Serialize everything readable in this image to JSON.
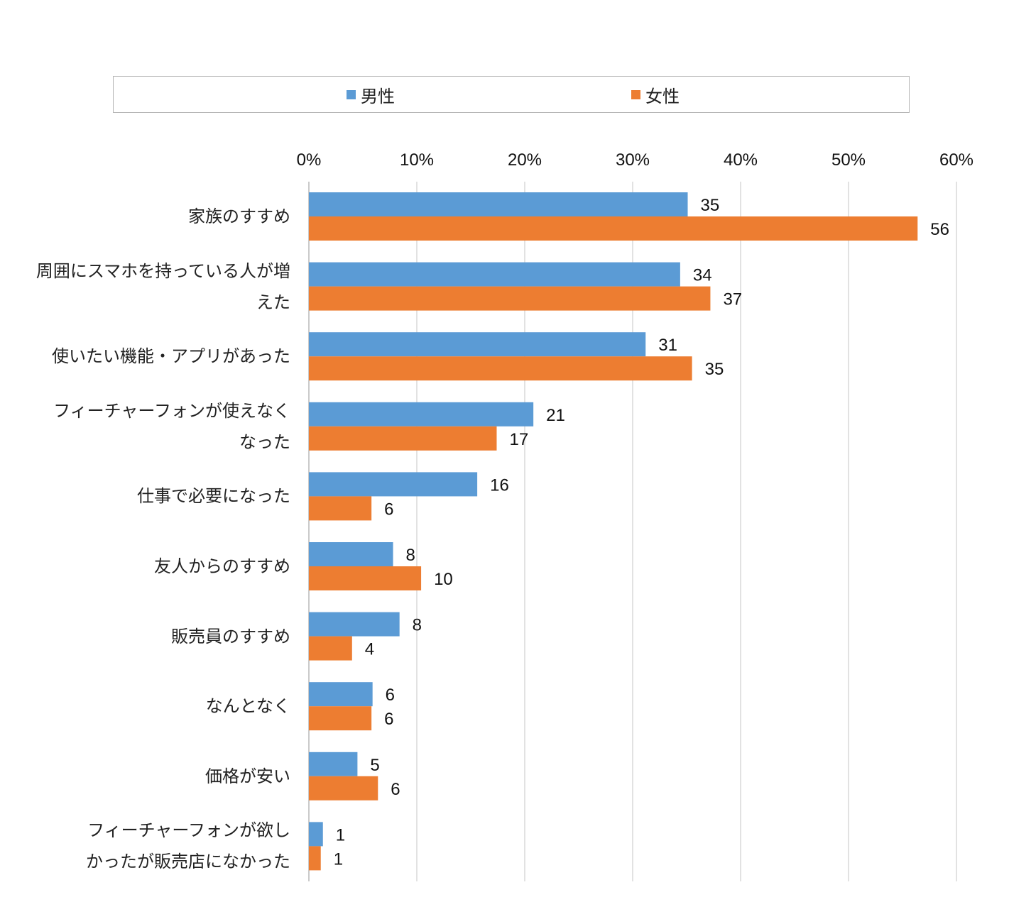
{
  "chart_data": {
    "type": "bar",
    "orientation": "horizontal",
    "categories": [
      "家族のすすめ",
      "周囲にスマホを持っている人が増えた",
      "使いたい機能・アプリがあった",
      "フィーチャーフォンが使えなくなった",
      "仕事で必要になった",
      "友人からのすすめ",
      "販売員のすすめ",
      "なんとなく",
      "価格が安い",
      "フィーチャーフォンが欲しかったが販売店になかった"
    ],
    "category_lines": [
      [
        "家族のすすめ"
      ],
      [
        "周囲にスマホを持っている人が増",
        "えた"
      ],
      [
        "使いたい機能・アプリがあった"
      ],
      [
        "フィーチャーフォンが使えなく",
        "なった"
      ],
      [
        "仕事で必要になった"
      ],
      [
        "友人からのすすめ"
      ],
      [
        "販売員のすすめ"
      ],
      [
        "なんとなく"
      ],
      [
        "価格が安い"
      ],
      [
        "フィーチャーフォンが欲し",
        "かったが販売店になかった"
      ]
    ],
    "series": [
      {
        "name": "男性",
        "color": "#5b9bd5",
        "values": [
          35,
          34,
          31,
          21,
          16,
          8,
          8,
          6,
          5,
          1
        ],
        "bar_lengths": [
          35.1,
          34.4,
          31.2,
          20.8,
          15.6,
          7.8,
          8.4,
          5.9,
          4.5,
          1.3
        ]
      },
      {
        "name": "女性",
        "color": "#ed7d31",
        "values": [
          56,
          37,
          35,
          17,
          6,
          10,
          4,
          6,
          6,
          1
        ],
        "bar_lengths": [
          56.4,
          37.2,
          35.5,
          17.4,
          5.8,
          10.4,
          4.0,
          5.8,
          6.4,
          1.1
        ]
      }
    ],
    "xlim": [
      0,
      60
    ],
    "xticks": [
      "0%",
      "10%",
      "20%",
      "30%",
      "40%",
      "50%",
      "60%"
    ],
    "grid": true,
    "legend_position": "top"
  }
}
